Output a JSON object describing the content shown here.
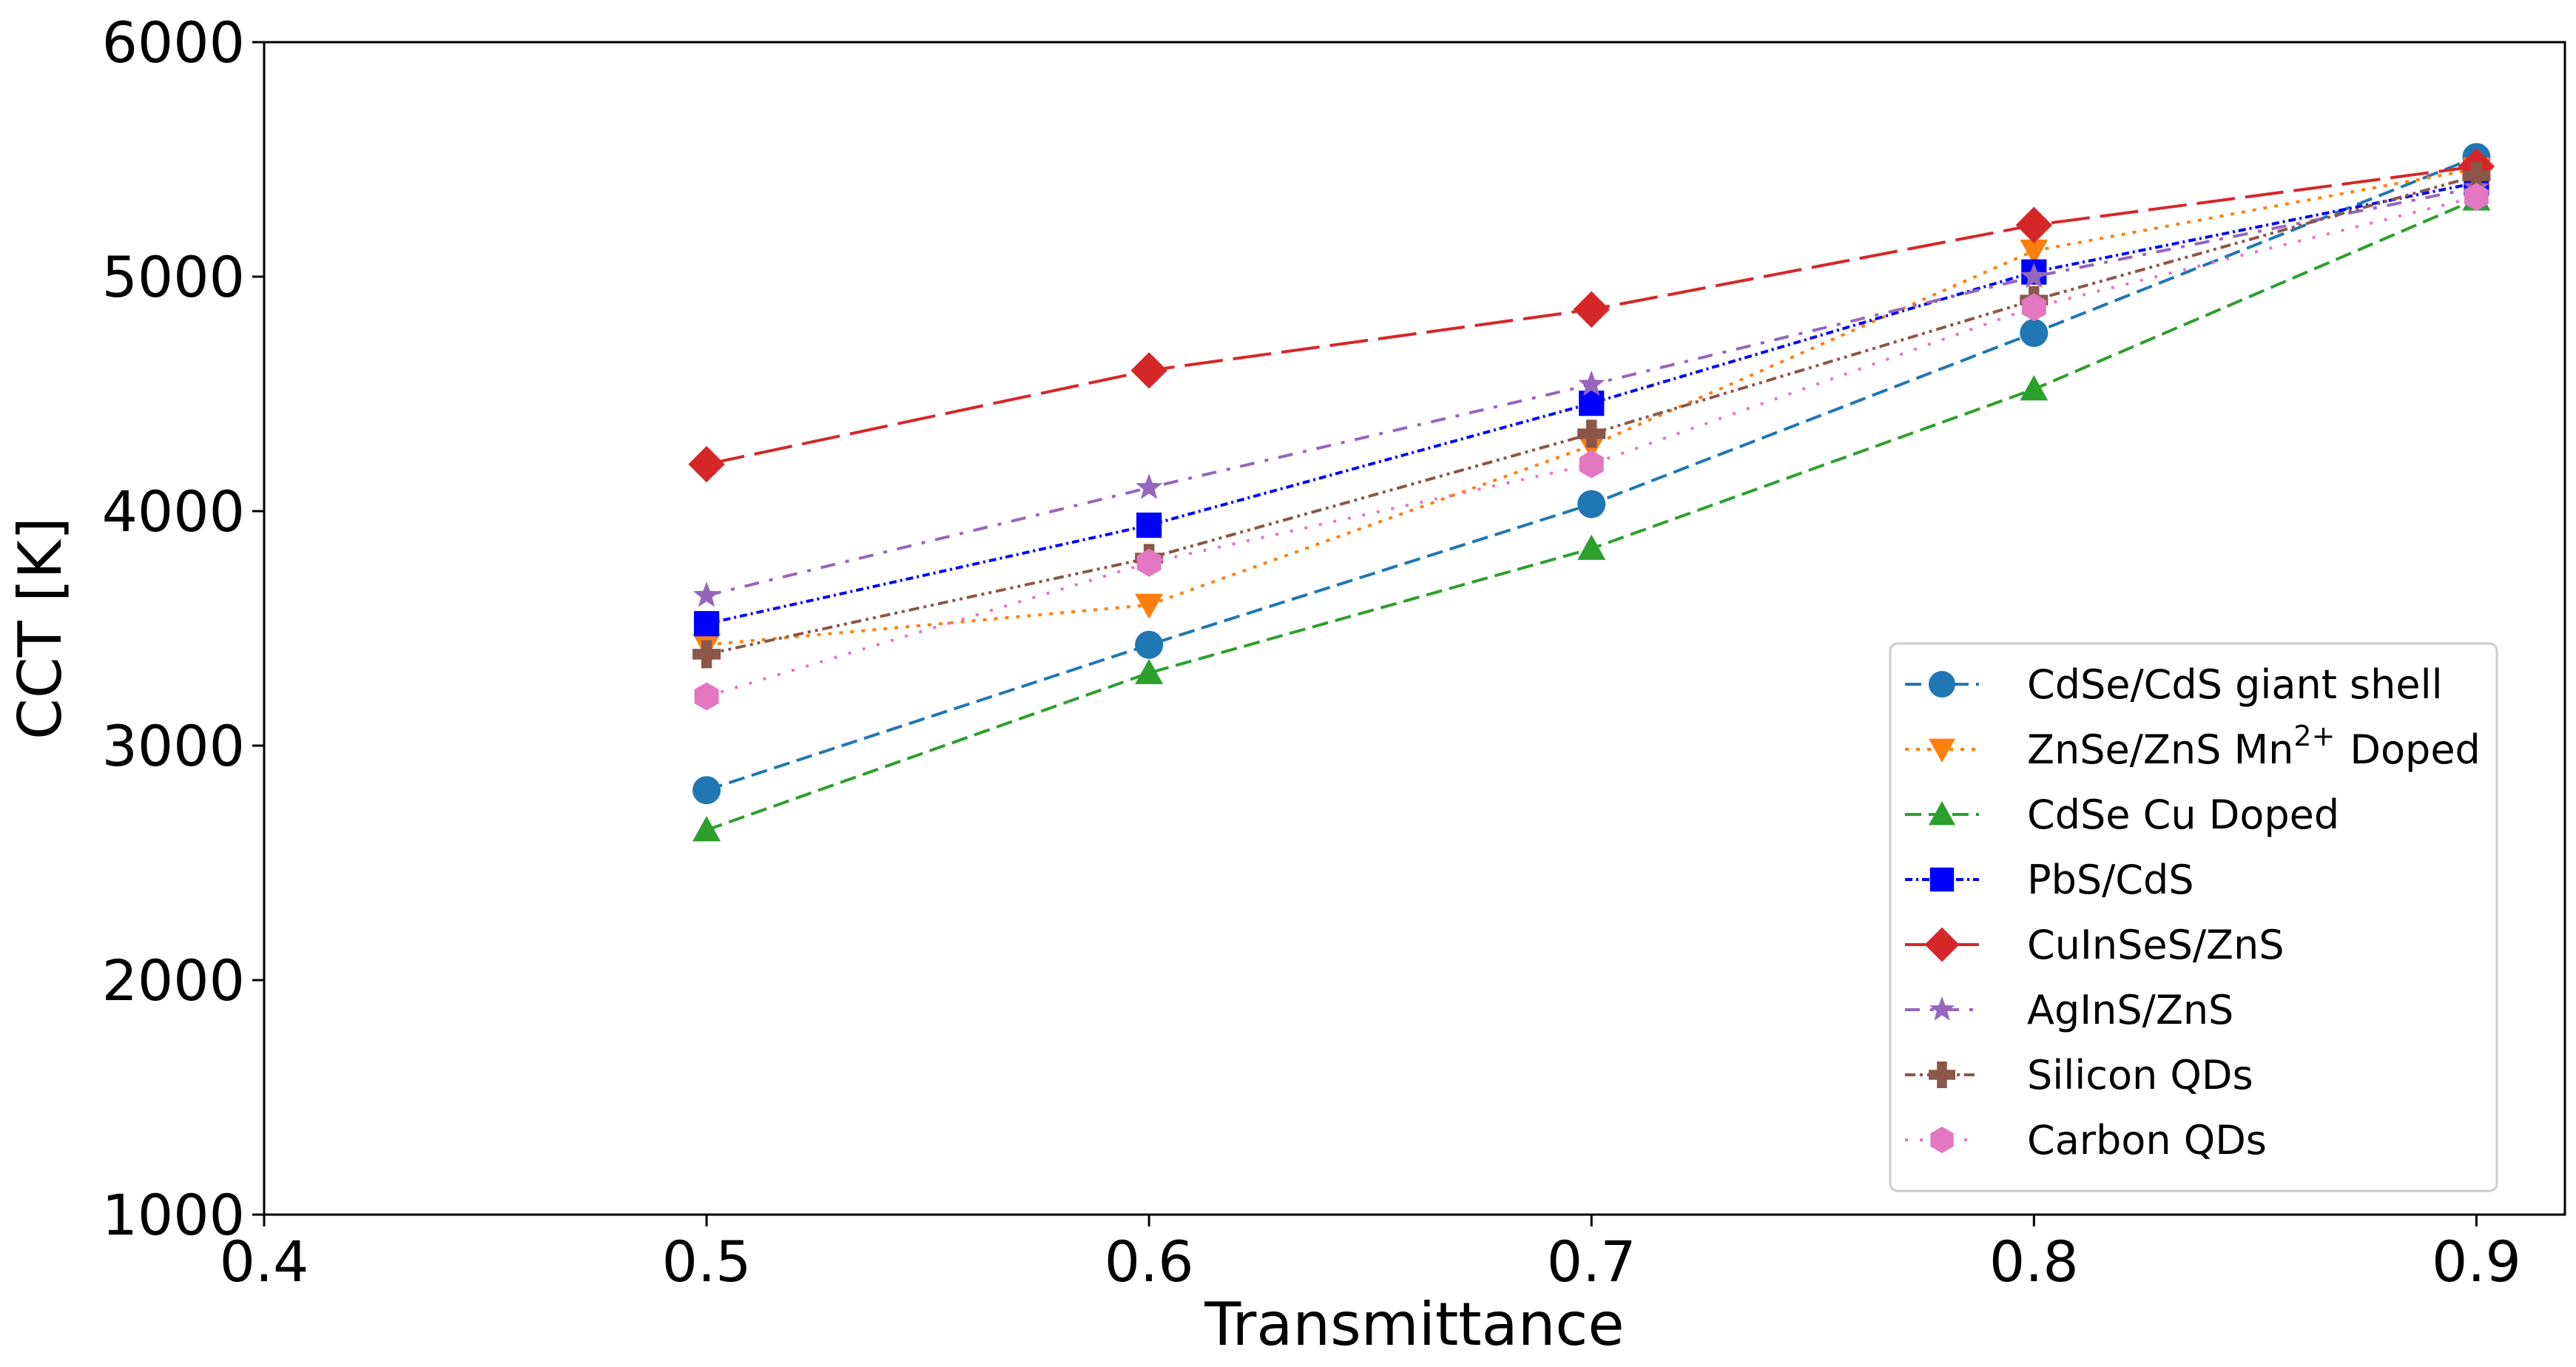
{
  "chart_data": {
    "type": "line",
    "title": "",
    "xlabel": "Transmittance",
    "ylabel": "CCT [K]",
    "xlim": [
      0.4,
      0.92
    ],
    "ylim": [
      1000,
      6000
    ],
    "grid": false,
    "legend_position": "lower-right",
    "x": [
      0.5,
      0.6,
      0.7,
      0.8,
      0.9
    ],
    "xticks": [
      {
        "value": 0.4,
        "label": "0.4"
      },
      {
        "value": 0.5,
        "label": "0.5"
      },
      {
        "value": 0.6,
        "label": "0.6"
      },
      {
        "value": 0.7,
        "label": "0.7"
      },
      {
        "value": 0.8,
        "label": "0.8"
      },
      {
        "value": 0.9,
        "label": "0.9"
      }
    ],
    "yticks": [
      {
        "value": 1000,
        "label": "1000"
      },
      {
        "value": 2000,
        "label": "2000"
      },
      {
        "value": 3000,
        "label": "3000"
      },
      {
        "value": 4000,
        "label": "4000"
      },
      {
        "value": 5000,
        "label": "5000"
      },
      {
        "value": 6000,
        "label": "6000"
      }
    ],
    "series": [
      {
        "id": "cdse-cds-giant-shell",
        "name": "CdSe/CdS giant shell",
        "color": "#1f77b4",
        "marker": "circle",
        "dash": "dashed",
        "values": [
          2810,
          3430,
          4030,
          4760,
          5510
        ]
      },
      {
        "id": "znse-zns-mn-doped",
        "name": "ZnSe/ZnS Mn",
        "superscript": "2+",
        "name_suffix": "Doped",
        "color": "#ff7f0e",
        "marker": "triangle-down",
        "dash": "dotted",
        "values": [
          3430,
          3600,
          4280,
          5110,
          5460
        ]
      },
      {
        "id": "cdse-cu-doped",
        "name": "CdSe Cu Doped",
        "color": "#2ca02c",
        "marker": "triangle-up",
        "dash": "dashed",
        "values": [
          2640,
          3310,
          3840,
          4520,
          5330
        ]
      },
      {
        "id": "pbs-cds",
        "name": "PbS/CdS",
        "color": "#0000ff",
        "marker": "square",
        "dash": "dashdot-dense",
        "values": [
          3520,
          3940,
          4460,
          5020,
          5400
        ]
      },
      {
        "id": "cuinses-zns",
        "name": "CuInSeS/ZnS",
        "color": "#d62728",
        "marker": "diamond",
        "dash": "long-dash",
        "values": [
          4200,
          4600,
          4860,
          5220,
          5470
        ]
      },
      {
        "id": "agins-zns",
        "name": "AgInS/ZnS",
        "color": "#9467bd",
        "marker": "star",
        "dash": "dashdot",
        "values": [
          3640,
          4100,
          4540,
          5000,
          5380
        ]
      },
      {
        "id": "silicon-qds",
        "name": "Silicon QDs",
        "color": "#8c564b",
        "marker": "plus",
        "dash": "dashdotdot",
        "values": [
          3390,
          3800,
          4330,
          4900,
          5430
        ]
      },
      {
        "id": "carbon-qds",
        "name": "Carbon QDs",
        "color": "#e377c2",
        "marker": "hexagon",
        "dash": "sparse-dotted",
        "values": [
          3210,
          3780,
          4200,
          4870,
          5340
        ]
      }
    ]
  }
}
